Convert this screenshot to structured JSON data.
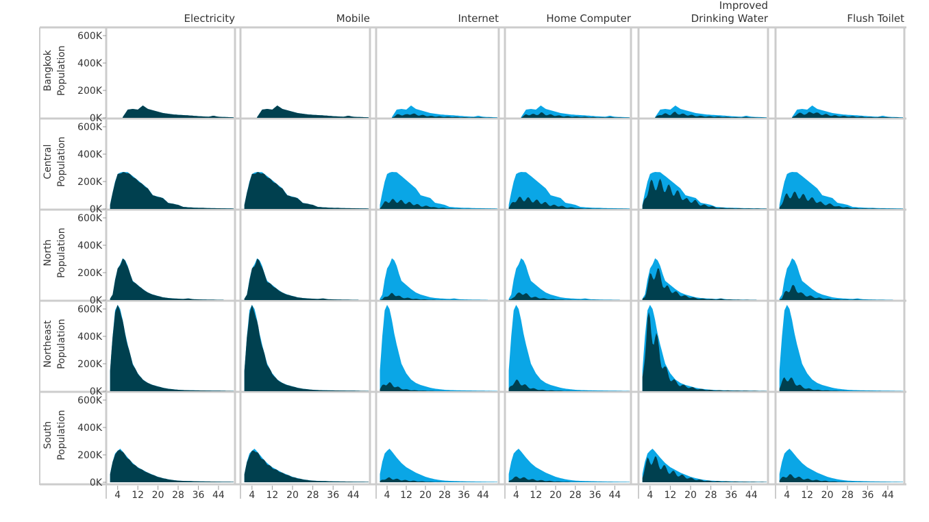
{
  "colors": {
    "total": "#0aa6e6",
    "with_amenity": "#00404f",
    "frame": "#cccccc",
    "text": "#333333"
  },
  "chart_data": {
    "type": "area",
    "columns": [
      "Electricity",
      "Mobile",
      "Internet",
      "Home Computer",
      "Improved Drinking Water",
      "Flush Toilet"
    ],
    "column_header_lines": [
      [
        "Electricity"
      ],
      [
        "Mobile"
      ],
      [
        "Internet"
      ],
      [
        "Home Computer"
      ],
      [
        "Improved",
        "Drinking Water"
      ],
      [
        "Flush Toilet"
      ]
    ],
    "rows": [
      "Bangkok",
      "Central",
      "North",
      "Northeast",
      "South"
    ],
    "row_label_suffix": "Population",
    "ylim": [
      0,
      650000
    ],
    "yticks": [
      0,
      200000,
      400000,
      600000
    ],
    "ytick_labels": [
      "0K",
      "200K",
      "400K",
      "600K"
    ],
    "xlim": [
      0,
      50
    ],
    "xticks": [
      4,
      12,
      20,
      28,
      36,
      44
    ],
    "xtick_labels": [
      "4",
      "12",
      "20",
      "28",
      "36",
      "44"
    ],
    "x_extent_by_row": {
      "Bangkok": [
        6,
        50
      ],
      "Central": [
        1,
        50
      ],
      "North": [
        1,
        46
      ],
      "Northeast": [
        1,
        50
      ],
      "South": [
        1,
        50
      ]
    },
    "totals": {
      "Bangkok": [
        [
          6,
          5000
        ],
        [
          8,
          60000
        ],
        [
          10,
          65000
        ],
        [
          12,
          60000
        ],
        [
          14,
          90000
        ],
        [
          16,
          65000
        ],
        [
          18,
          55000
        ],
        [
          20,
          45000
        ],
        [
          22,
          35000
        ],
        [
          24,
          30000
        ],
        [
          26,
          25000
        ],
        [
          28,
          22000
        ],
        [
          30,
          20000
        ],
        [
          32,
          18000
        ],
        [
          34,
          15000
        ],
        [
          36,
          12000
        ],
        [
          38,
          10000
        ],
        [
          40,
          8000
        ],
        [
          42,
          15000
        ],
        [
          44,
          8000
        ],
        [
          46,
          6000
        ],
        [
          48,
          5000
        ],
        [
          50,
          4000
        ]
      ],
      "Central": [
        [
          1,
          30000
        ],
        [
          2,
          120000
        ],
        [
          3,
          200000
        ],
        [
          4,
          255000
        ],
        [
          5,
          265000
        ],
        [
          6,
          270000
        ],
        [
          8,
          268000
        ],
        [
          10,
          240000
        ],
        [
          12,
          210000
        ],
        [
          14,
          180000
        ],
        [
          16,
          150000
        ],
        [
          18,
          100000
        ],
        [
          20,
          90000
        ],
        [
          22,
          80000
        ],
        [
          24,
          45000
        ],
        [
          26,
          38000
        ],
        [
          28,
          30000
        ],
        [
          30,
          15000
        ],
        [
          32,
          12000
        ],
        [
          34,
          10000
        ],
        [
          36,
          8000
        ],
        [
          38,
          8000
        ],
        [
          40,
          6000
        ],
        [
          44,
          5000
        ],
        [
          48,
          4000
        ],
        [
          50,
          3000
        ]
      ],
      "North": [
        [
          1,
          10000
        ],
        [
          2,
          40000
        ],
        [
          3,
          150000
        ],
        [
          4,
          230000
        ],
        [
          5,
          260000
        ],
        [
          6,
          305000
        ],
        [
          7,
          290000
        ],
        [
          8,
          250000
        ],
        [
          9,
          190000
        ],
        [
          10,
          140000
        ],
        [
          12,
          110000
        ],
        [
          14,
          80000
        ],
        [
          16,
          55000
        ],
        [
          18,
          40000
        ],
        [
          20,
          30000
        ],
        [
          22,
          20000
        ],
        [
          24,
          15000
        ],
        [
          26,
          12000
        ],
        [
          28,
          10000
        ],
        [
          30,
          8000
        ],
        [
          32,
          12000
        ],
        [
          34,
          6000
        ],
        [
          36,
          5000
        ],
        [
          38,
          4000
        ],
        [
          40,
          3000
        ],
        [
          42,
          3000
        ],
        [
          44,
          2000
        ],
        [
          46,
          2000
        ]
      ],
      "Northeast": [
        [
          1,
          150000
        ],
        [
          2,
          400000
        ],
        [
          3,
          590000
        ],
        [
          4,
          630000
        ],
        [
          5,
          600000
        ],
        [
          6,
          520000
        ],
        [
          7,
          420000
        ],
        [
          8,
          340000
        ],
        [
          9,
          270000
        ],
        [
          10,
          200000
        ],
        [
          12,
          130000
        ],
        [
          14,
          85000
        ],
        [
          16,
          60000
        ],
        [
          18,
          45000
        ],
        [
          20,
          35000
        ],
        [
          22,
          25000
        ],
        [
          24,
          18000
        ],
        [
          26,
          14000
        ],
        [
          28,
          10000
        ],
        [
          30,
          8000
        ],
        [
          34,
          6000
        ],
        [
          38,
          5000
        ],
        [
          42,
          4000
        ],
        [
          46,
          3000
        ],
        [
          50,
          2000
        ]
      ],
      "South": [
        [
          1,
          60000
        ],
        [
          2,
          150000
        ],
        [
          3,
          210000
        ],
        [
          4,
          230000
        ],
        [
          5,
          245000
        ],
        [
          6,
          225000
        ],
        [
          8,
          180000
        ],
        [
          10,
          140000
        ],
        [
          12,
          110000
        ],
        [
          14,
          90000
        ],
        [
          16,
          70000
        ],
        [
          18,
          55000
        ],
        [
          20,
          40000
        ],
        [
          22,
          30000
        ],
        [
          24,
          22000
        ],
        [
          26,
          16000
        ],
        [
          28,
          12000
        ],
        [
          30,
          10000
        ],
        [
          34,
          8000
        ],
        [
          38,
          6000
        ],
        [
          42,
          5000
        ],
        [
          46,
          4000
        ],
        [
          50,
          3000
        ]
      ]
    },
    "with_amenity_fraction": {
      "Electricity": {
        "Bangkok": 1.0,
        "Central": 0.97,
        "North": 0.97,
        "Northeast": 0.97,
        "South": 0.96
      },
      "Mobile": {
        "Bangkok": 1.0,
        "Central": 0.96,
        "North": 0.94,
        "Northeast": 0.95,
        "South": 0.92
      },
      "Internet": {
        "Bangkok": 0.35,
        "Central": 0.22,
        "North": 0.14,
        "Northeast": 0.09,
        "South": 0.12
      },
      "Home Computer": {
        "Bangkok": 0.38,
        "Central": 0.27,
        "North": 0.17,
        "Northeast": 0.11,
        "South": 0.15
      },
      "Improved Drinking Water": {
        "Bangkok": 0.42,
        "Central": 0.66,
        "North": 0.68,
        "Northeast": 0.76,
        "South": 0.7
      },
      "Flush Toilet": {
        "Bangkok": 0.48,
        "Central": 0.38,
        "North": 0.3,
        "Northeast": 0.15,
        "South": 0.2
      }
    }
  }
}
